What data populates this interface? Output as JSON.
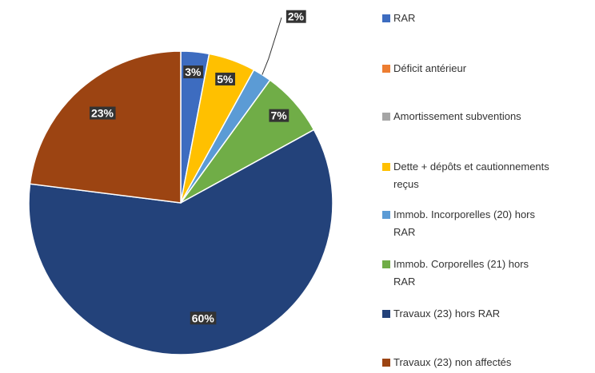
{
  "chart_data": {
    "type": "pie",
    "categories": [
      "RAR",
      "Déficit antérieur",
      "Amortissement subventions",
      "Dette + dépôts et cautionnements reçus",
      "Immob. Incorporelles (20) hors RAR",
      "Immob. Corporelles (21) hors RAR",
      "Travaux (23) hors RAR",
      "Travaux (23) non affectés"
    ],
    "values": [
      3,
      0,
      0,
      5,
      2,
      7,
      60,
      23
    ],
    "value_labels": [
      "3%",
      null,
      null,
      "5%",
      "2%",
      "7%",
      "60%",
      "23%"
    ],
    "colors": [
      "#3d6cc0",
      "#ed7d31",
      "#a5a5a5",
      "#ffc000",
      "#5b9bd5",
      "#70ad47",
      "#23427a",
      "#9c4412"
    ],
    "legend": "right"
  }
}
